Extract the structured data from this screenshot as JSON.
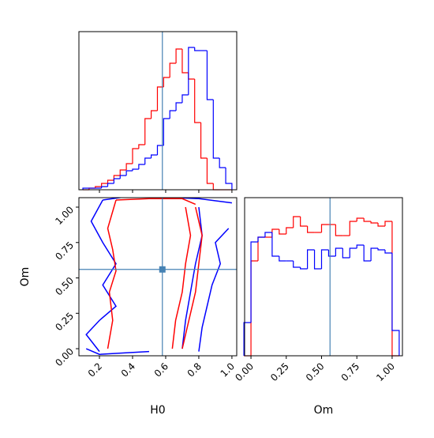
{
  "chart_data": [
    {
      "type": "histogram",
      "bins": [
        0.1,
        0.1375,
        0.175,
        0.2125,
        0.25,
        0.2875,
        0.325,
        0.3625,
        0.4,
        0.4375,
        0.475,
        0.5125,
        0.55,
        0.5875,
        0.625,
        0.6625,
        0.7,
        0.7375,
        0.775,
        0.8125,
        0.85,
        0.8875,
        0.925,
        0.9625,
        1.0
      ],
      "series": [
        {
          "color": "red",
          "values": [
            0,
            0.01,
            0.02,
            0.04,
            0.06,
            0.09,
            0.125,
            0.165,
            0.26,
            0.285,
            0.45,
            0.5,
            0.65,
            0.71,
            0.8,
            0.89,
            0.74,
            0.7,
            0.425,
            0.2,
            0.04,
            0,
            0,
            0
          ]
        },
        {
          "color": "blue",
          "values": [
            0.01,
            0.01,
            0.01,
            0.02,
            0.04,
            0.07,
            0.09,
            0.12,
            0.13,
            0.16,
            0.2,
            0.22,
            0.28,
            0.45,
            0.5,
            0.55,
            0.6,
            0.9,
            0.88,
            0.88,
            0.57,
            0.2,
            0.14,
            0.04
          ]
        }
      ],
      "xlim": [
        0.076,
        1.029
      ],
      "ylim": [
        0,
        1
      ],
      "xticks": [
        0.2,
        0.4,
        0.6,
        0.8,
        1.0
      ],
      "truth": 0.58,
      "truth_color": "#4682b4"
    },
    {
      "type": "contour",
      "xlabel": "H0",
      "ylabel": "Om",
      "series": [
        {
          "color": "blue",
          "lines": [
            {
              "x": [
                0.22,
                0.15,
                0.22,
                0.3,
                0.22,
                0.3,
                0.2,
                0.12,
                0.2
              ],
              "y": [
                1.05,
                0.9,
                0.75,
                0.6,
                0.45,
                0.3,
                0.2,
                0.1,
                -0.02
              ]
            },
            {
              "x": [
                0.98,
                0.9,
                0.93,
                0.88,
                0.85,
                0.82,
                0.8
              ],
              "y": [
                0.85,
                0.75,
                0.6,
                0.45,
                0.3,
                0.15,
                -0.02
              ]
            },
            {
              "x": [
                0.8,
                0.82,
                0.78,
                0.75,
                0.72,
                0.7
              ],
              "y": [
                1.0,
                0.8,
                0.6,
                0.4,
                0.2,
                0.0
              ]
            },
            {
              "x": [
                0.22,
                0.4,
                0.6,
                0.8,
                1.0
              ],
              "y": [
                1.05,
                1.08,
                1.07,
                1.06,
                1.03
              ]
            },
            {
              "x": [
                0.12,
                0.2,
                0.35,
                0.5
              ],
              "y": [
                0.0,
                -0.04,
                -0.03,
                -0.02
              ]
            }
          ]
        },
        {
          "color": "red",
          "lines": [
            {
              "x": [
                0.3,
                0.25,
                0.28,
                0.3,
                0.26,
                0.28,
                0.25
              ],
              "y": [
                1.05,
                0.85,
                0.7,
                0.55,
                0.4,
                0.2,
                0.0
              ]
            },
            {
              "x": [
                0.72,
                0.75,
                0.72,
                0.7,
                0.66,
                0.64
              ],
              "y": [
                1.0,
                0.8,
                0.6,
                0.4,
                0.2,
                0.0
              ]
            },
            {
              "x": [
                0.78,
                0.82,
                0.8,
                0.78,
                0.74,
                0.7
              ],
              "y": [
                1.0,
                0.8,
                0.6,
                0.4,
                0.2,
                0.0
              ]
            },
            {
              "x": [
                0.3,
                0.5,
                0.7,
                0.78
              ],
              "y": [
                1.05,
                1.06,
                1.06,
                1.02
              ]
            }
          ]
        }
      ],
      "xlim": [
        0.076,
        1.029
      ],
      "ylim": [
        -0.05,
        1.067
      ],
      "xticks": [
        0.2,
        0.4,
        0.6,
        0.8,
        {
          "value": 1.0,
          "label": "1.0"
        }
      ],
      "yticks": [
        {
          "value": 0,
          "label": "0.00"
        },
        0.25,
        {
          "value": 0.5,
          "label": "0.50"
        },
        0.75,
        {
          "value": 1.0,
          "label": "1.00"
        }
      ],
      "truth": [
        0.58,
        0.56
      ],
      "truth_color": "#4682b4"
    },
    {
      "type": "histogram",
      "xlabel": "Om",
      "bins": [
        -0.05,
        0,
        0.05,
        0.1,
        0.15,
        0.2,
        0.25,
        0.3,
        0.35,
        0.4,
        0.45,
        0.5,
        0.55,
        0.6,
        0.65,
        0.7,
        0.75,
        0.8,
        0.85,
        0.9,
        0.95,
        1.0,
        1.05
      ],
      "series": [
        {
          "color": "red",
          "values": [
            0,
            0.6,
            0.75,
            0.75,
            0.8,
            0.77,
            0.81,
            0.88,
            0.82,
            0.78,
            0.78,
            0.83,
            0.83,
            0.76,
            0.76,
            0.85,
            0.87,
            0.85,
            0.84,
            0.82,
            0.85,
            0
          ]
        },
        {
          "color": "blue",
          "values": [
            0.21,
            0.72,
            0.75,
            0.78,
            0.63,
            0.6,
            0.6,
            0.56,
            0.55,
            0.67,
            0.55,
            0.67,
            0.63,
            0.68,
            0.62,
            0.68,
            0.7,
            0.6,
            0.68,
            0.67,
            0.65,
            0.16
          ]
        }
      ],
      "xlim": [
        -0.045,
        1.073
      ],
      "ylim": [
        0,
        1
      ],
      "xticks": [
        {
          "value": 0,
          "label": "0.00"
        },
        0.25,
        {
          "value": 0.5,
          "label": "0.50"
        },
        0.75,
        {
          "value": 1.0,
          "label": "1.00"
        }
      ],
      "truth": 0.56,
      "truth_color": "#4682b4"
    }
  ]
}
